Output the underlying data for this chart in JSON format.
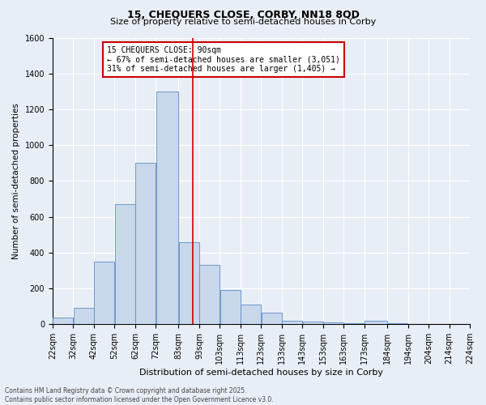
{
  "title_line1": "15, CHEQUERS CLOSE, CORBY, NN18 8QD",
  "title_line2": "Size of property relative to semi-detached houses in Corby",
  "xlabel": "Distribution of semi-detached houses by size in Corby",
  "ylabel": "Number of semi-detached properties",
  "footer_line1": "Contains HM Land Registry data © Crown copyright and database right 2025.",
  "footer_line2": "Contains public sector information licensed under the Open Government Licence v3.0.",
  "annotation_title": "15 CHEQUERS CLOSE: 90sqm",
  "annotation_line1": "← 67% of semi-detached houses are smaller (3,051)",
  "annotation_line2": "31% of semi-detached houses are larger (1,405) →",
  "property_size": 90,
  "bin_edges": [
    22,
    32,
    42,
    52,
    62,
    72,
    83,
    93,
    103,
    113,
    123,
    133,
    143,
    153,
    163,
    173,
    184,
    194,
    204,
    214,
    224
  ],
  "bar_heights": [
    40,
    90,
    350,
    670,
    900,
    1300,
    460,
    330,
    190,
    110,
    65,
    20,
    15,
    10,
    5,
    20,
    5,
    2,
    2,
    2
  ],
  "bar_color": "#c8d8ea",
  "bar_edge_color": "#5b8cc8",
  "vline_color": "#cc0000",
  "vline_x": 90,
  "xlim_left": 22,
  "xlim_right": 224,
  "ylim": [
    0,
    1600
  ],
  "yticks": [
    0,
    200,
    400,
    600,
    800,
    1000,
    1200,
    1400,
    1600
  ],
  "background_color": "#e8eef5",
  "grid_color": "#ffffff",
  "annotation_box_color": "#ffffff",
  "annotation_box_edge": "#cc0000",
  "title1_fontsize": 9,
  "title2_fontsize": 8,
  "ylabel_fontsize": 7.5,
  "xlabel_fontsize": 8,
  "tick_fontsize": 7,
  "annotation_fontsize": 7,
  "footer_fontsize": 5.5
}
